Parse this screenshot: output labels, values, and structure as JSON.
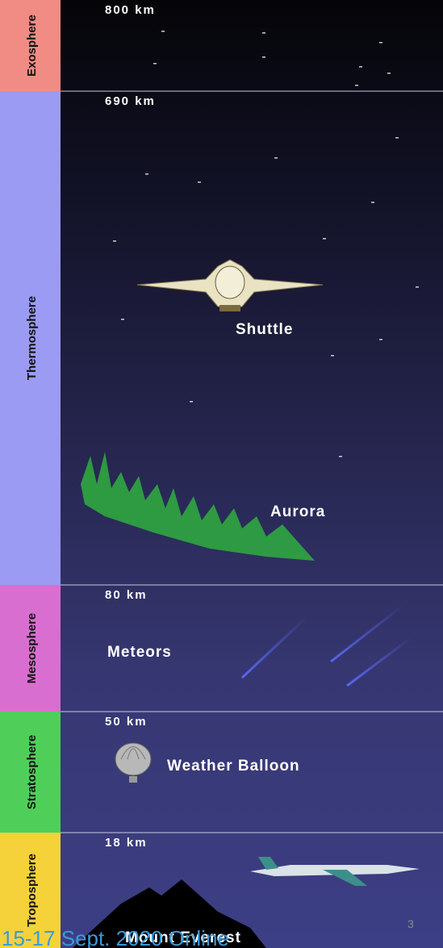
{
  "layers": [
    {
      "name": "Exosphere",
      "altitude": "800 km"
    },
    {
      "name": "Thermosphere",
      "altitude": "690 km"
    },
    {
      "name": "Mesosphere",
      "altitude": "80 km"
    },
    {
      "name": "Stratosphere",
      "altitude": "50 km"
    },
    {
      "name": "Troposphere",
      "altitude": "18 km"
    }
  ],
  "objects": [
    "Shuttle",
    "Aurora",
    "Meteors",
    "Weather Balloon",
    "Mount Everest"
  ],
  "footer": {
    "event": "15-17 Sept. 2020 Online",
    "page": "3"
  }
}
